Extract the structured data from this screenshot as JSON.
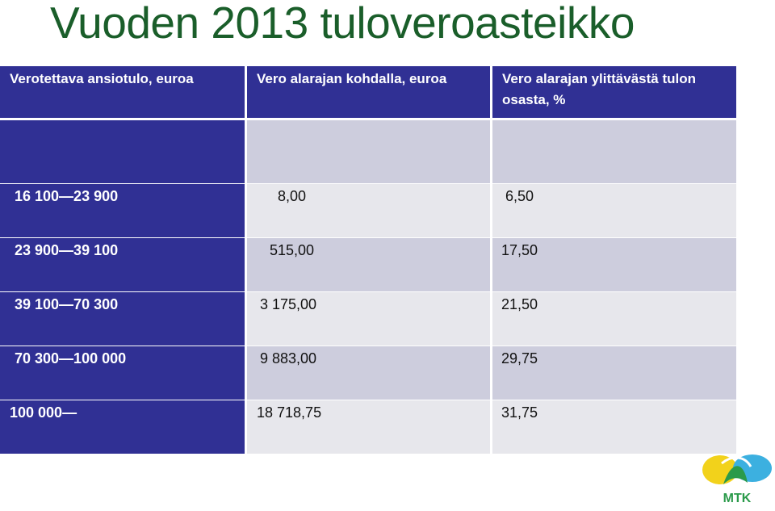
{
  "title": "Vuoden 2013 tuloveroasteikko",
  "table": {
    "headers": [
      "Verotettava ansiotulo, euroa",
      "Vero alarajan kohdalla, euroa",
      "Vero alarajan ylittävästä tulon osasta, %"
    ],
    "rows": [
      [
        "",
        "",
        ""
      ],
      [
        "16 100—23 900",
        "8,00",
        "6,50"
      ],
      [
        "23 900—39 100",
        "515,00",
        "17,50"
      ],
      [
        "39 100—70 300",
        "3 175,00",
        "21,50"
      ],
      [
        "70 300—100 000",
        "9 883,00",
        "29,75"
      ],
      [
        "100 000—",
        "18 718,75",
        "31,75"
      ]
    ]
  },
  "logo": {
    "text": "MTK",
    "colors": [
      "#f2d21b",
      "#3cb0e0",
      "#2a9a4a"
    ]
  }
}
